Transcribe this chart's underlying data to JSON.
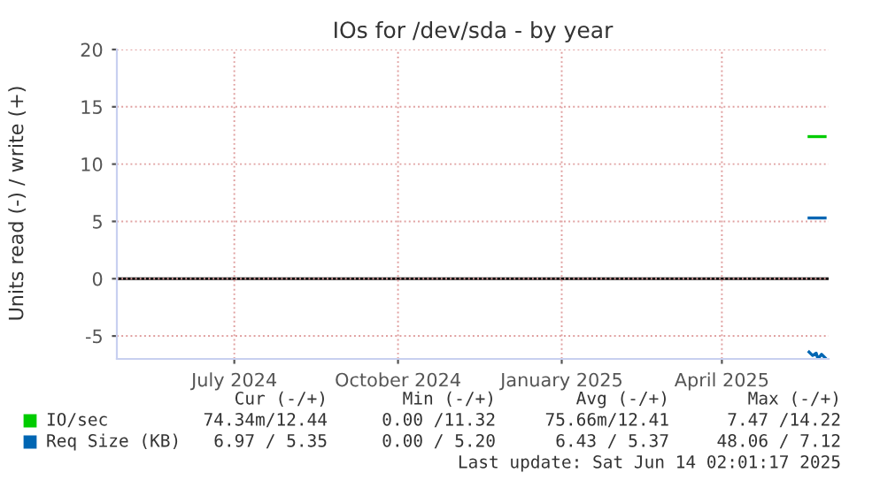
{
  "chart_data": {
    "type": "line",
    "title": "IOs for /dev/sda - by year",
    "ylabel": "Units read (-) / write (+)",
    "xlim": [
      "2024-05-10",
      "2025-06-14"
    ],
    "xticks": [
      {
        "value": "2024-07-15",
        "label": "July 2024"
      },
      {
        "value": "2024-10-15",
        "label": "October 2024"
      },
      {
        "value": "2025-01-15",
        "label": "January 2025"
      },
      {
        "value": "2025-04-15",
        "label": "April 2025"
      }
    ],
    "ylim": [
      -7,
      20
    ],
    "yticks": [
      -5,
      0,
      5,
      10,
      15,
      20
    ],
    "grid": true,
    "legend": "bottom left",
    "line_style": "solid",
    "marker": "none",
    "series": [
      {
        "name": "IO/sec",
        "color": "#00cc00",
        "x": [
          "2025-06-03",
          "2025-06-12"
        ],
        "values": [
          12.4,
          12.4
        ]
      },
      {
        "name": "Req Size (KB)",
        "color": "#0066b3",
        "x": [
          "2025-06-03",
          "2025-06-12"
        ],
        "values": [
          5.3,
          5.3
        ]
      },
      {
        "color": "#0066b3",
        "x": [
          "2025-06-03",
          "2025-06-05",
          "2025-06-07",
          "2025-06-08",
          "2025-06-10",
          "2025-06-12"
        ],
        "values": [
          -6.4,
          -6.7,
          -6.5,
          -7.0,
          -6.6,
          -6.9
        ]
      }
    ],
    "ref_lines": [
      {
        "axis": "y",
        "value": 0,
        "color": "#000000"
      }
    ],
    "annotations": [
      "Cur (-/+)",
      "Min (-/+)",
      "Avg (-/+)",
      "Max (-/+)",
      "74.34m/12.44",
      "0.00 /11.32",
      "75.66m/12.41",
      "7.47 /14.22",
      "6.97 / 5.35",
      "0.00 / 5.20",
      "6.43 / 5.37",
      "48.06 / 7.12",
      "Last update: Sat Jun 14 02:01:17 2025"
    ]
  }
}
